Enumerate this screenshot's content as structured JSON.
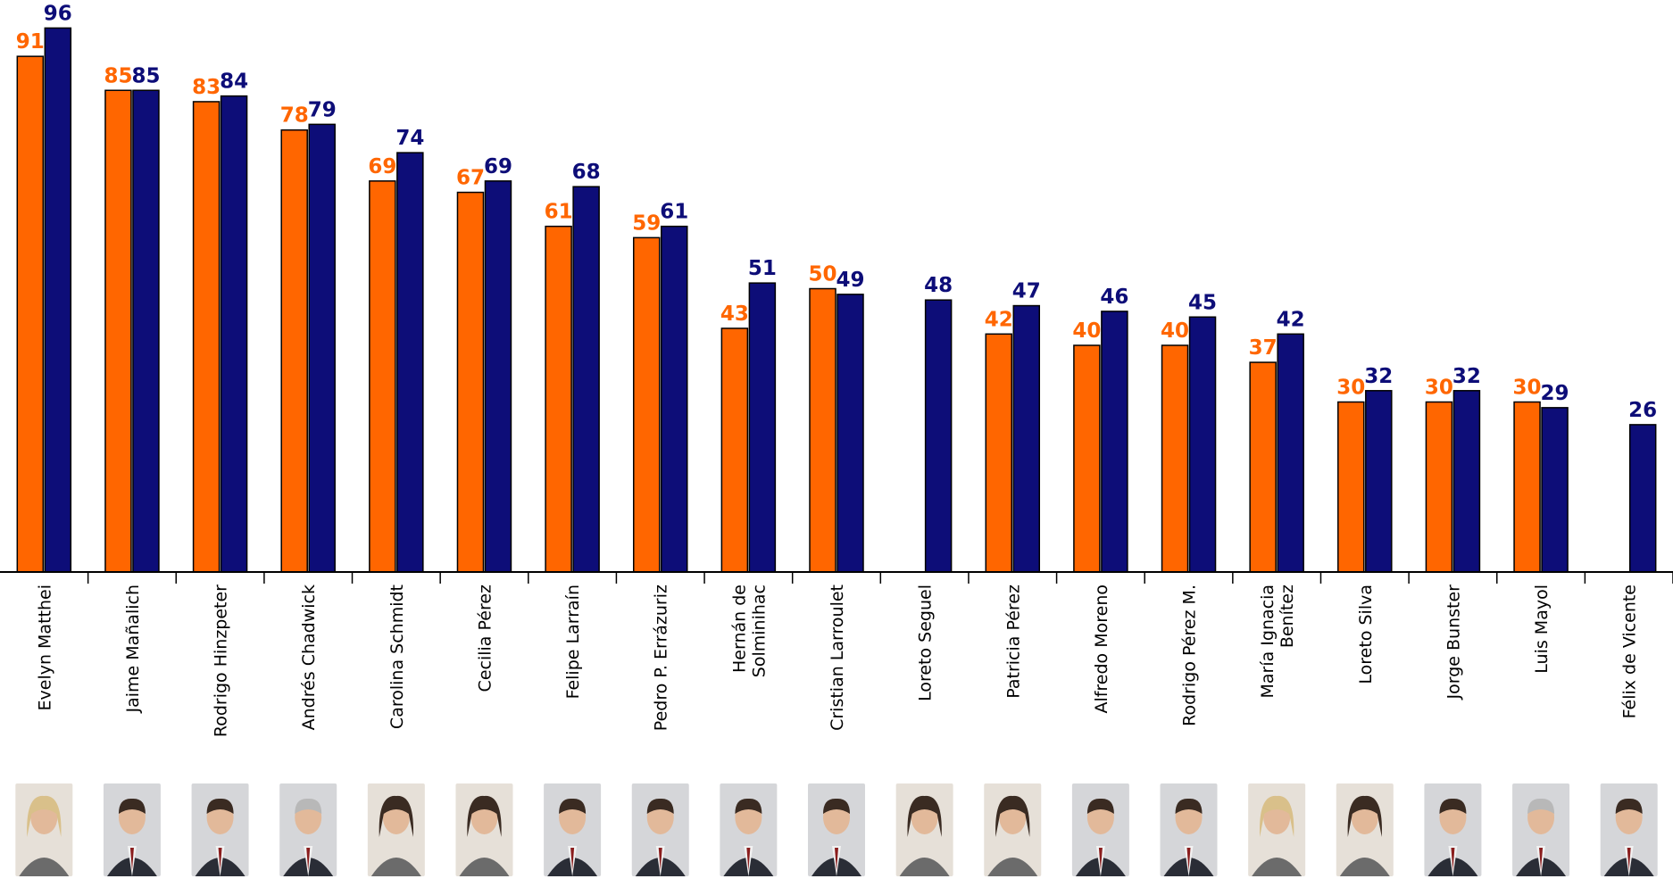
{
  "chart_data": {
    "type": "bar",
    "title": "",
    "xlabel": "",
    "ylabel": "",
    "ylim": [
      0,
      100
    ],
    "grid": false,
    "legend": "none",
    "colors": {
      "series_a": "#ff6600",
      "series_b": "#0d0d78"
    },
    "categories": [
      "Evelyn Matthei",
      "Jaime Mañalich",
      "Rodrigo Hinzpeter",
      "Andrés Chadwick",
      "Carolina Schmidt",
      "Cecilia Pérez",
      "Felipe Larraín",
      "Pedro P. Errázuriz",
      "Hernán de Solminihac",
      "Cristian Larroulet",
      "Loreto Seguel",
      "Patricia Pérez",
      "Alfredo Moreno",
      "Rodrigo Pérez M.",
      "María Ignacia Benítez",
      "Loreto Silva",
      "Jorge Bunster",
      "Luis Mayol",
      "Félix de Vicente"
    ],
    "category_lines": [
      [
        "Evelyn Matthei"
      ],
      [
        "Jaime Mañalich"
      ],
      [
        "Rodrigo Hinzpeter"
      ],
      [
        "Andrés Chadwick"
      ],
      [
        "Carolina Schmidt"
      ],
      [
        "Cecilia Pérez"
      ],
      [
        "Felipe Larraín"
      ],
      [
        "Pedro P. Errázuriz"
      ],
      [
        "Hernán de",
        "Solminihac"
      ],
      [
        "Cristian Larroulet"
      ],
      [
        "Loreto Seguel"
      ],
      [
        "Patricia Pérez"
      ],
      [
        "Alfredo Moreno"
      ],
      [
        "Rodrigo Pérez M."
      ],
      [
        "María Ignacia",
        "Benítez"
      ],
      [
        "Loreto Silva"
      ],
      [
        "Jorge Bunster"
      ],
      [
        "Luis Mayol"
      ],
      [
        "Félix de Vicente"
      ]
    ],
    "series": [
      {
        "values": [
          91,
          85,
          83,
          78,
          69,
          67,
          61,
          59,
          43,
          50,
          null,
          42,
          40,
          40,
          37,
          30,
          30,
          30,
          null
        ]
      },
      {
        "values": [
          96,
          85,
          84,
          79,
          74,
          69,
          68,
          61,
          51,
          49,
          48,
          47,
          46,
          45,
          42,
          32,
          32,
          29,
          26
        ]
      }
    ],
    "photos": [
      "portrait-woman-blonde",
      "portrait-man-suit",
      "portrait-man-glasses",
      "portrait-man-gray-hair",
      "portrait-woman-dark-hair",
      "portrait-woman-curly-hair",
      "portrait-man-suit",
      "portrait-man-beard",
      "portrait-man-suit",
      "portrait-man-glasses",
      "portrait-woman-short-hair",
      "portrait-woman-dark-hair",
      "portrait-man-suit",
      "portrait-man-suit",
      "portrait-woman-blonde",
      "portrait-woman-dark-hair",
      "portrait-man-suit",
      "portrait-man-gray-hair",
      "portrait-man-suit"
    ]
  }
}
